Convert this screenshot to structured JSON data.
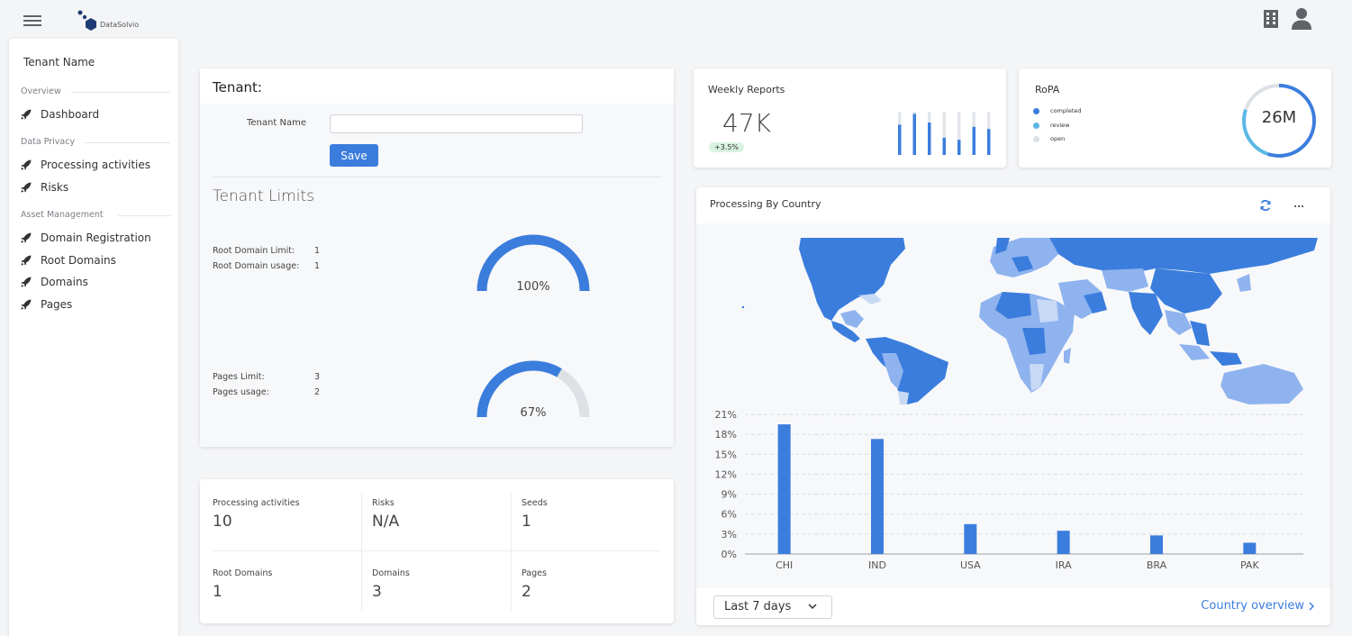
{
  "app": {
    "logo_text": "DataSolvio"
  },
  "sidebar": {
    "tenant_name": "Tenant Name",
    "sections": [
      {
        "title": "Overview",
        "items": [
          {
            "label": "Dashboard"
          }
        ]
      },
      {
        "title": "Data Privacy",
        "items": [
          {
            "label": "Processing activities"
          },
          {
            "label": "Risks"
          }
        ]
      },
      {
        "title": "Asset Management",
        "items": [
          {
            "label": "Domain Registration"
          },
          {
            "label": "Root Domains"
          },
          {
            "label": "Domains"
          },
          {
            "label": "Pages"
          }
        ]
      }
    ]
  },
  "tenant": {
    "title": "Tenant:",
    "name_label": "Tenant Name",
    "name_value": "",
    "save_label": "Save",
    "limits_title": "Tenant Limits",
    "root_domain_limit_label": "Root Domain Limit:",
    "root_domain_limit": "1",
    "root_domain_usage_label": "Root Domain usage:",
    "root_domain_usage": "1",
    "root_gauge_pct": "100%",
    "root_gauge_fraction": 1.0,
    "pages_limit_label": "Pages Limit:",
    "pages_limit": "3",
    "pages_usage_label": "Pages usage:",
    "pages_usage": "2",
    "pages_gauge_pct": "67%",
    "pages_gauge_fraction": 0.67
  },
  "stats": [
    {
      "label": "Processing activities",
      "value": "10"
    },
    {
      "label": "Risks",
      "value": "N/A"
    },
    {
      "label": "Seeds",
      "value": "1"
    },
    {
      "label": "Root Domains",
      "value": "1"
    },
    {
      "label": "Domains",
      "value": "3"
    },
    {
      "label": "Pages",
      "value": "2"
    }
  ],
  "weekly": {
    "title": "Weekly Reports",
    "value": "47K",
    "change": "+3.5%",
    "bars": [
      0.7,
      0.95,
      0.75,
      0.4,
      0.35,
      0.65,
      0.6
    ]
  },
  "ropa": {
    "title": "RoPA",
    "value": "26M",
    "legend": [
      {
        "label": "completed",
        "color": "#3b7ddd"
      },
      {
        "label": "review",
        "color": "#5bb8e6"
      },
      {
        "label": "open",
        "color": "#dde1e6"
      }
    ],
    "segments": [
      0.55,
      0.25,
      0.2
    ]
  },
  "country": {
    "title": "Processing By Country",
    "select_value": "Last 7 days",
    "overview_label": "Country overview"
  },
  "colors": {
    "accent": "#3b7ddd",
    "light_accent": "#8fb3ee",
    "pale_accent": "#c8d9f6"
  },
  "chart_data": {
    "type": "bar",
    "categories": [
      "CHI",
      "IND",
      "USA",
      "IRA",
      "BRA",
      "PAK"
    ],
    "values": [
      19.5,
      17.3,
      4.5,
      3.5,
      2.8,
      1.7
    ],
    "ylim": [
      0,
      21
    ],
    "yticks": [
      0,
      3,
      6,
      9,
      12,
      15,
      18,
      21
    ],
    "ytick_labels": [
      "0%",
      "3%",
      "6%",
      "9%",
      "12%",
      "15%",
      "18%",
      "21%"
    ],
    "grid": true
  }
}
